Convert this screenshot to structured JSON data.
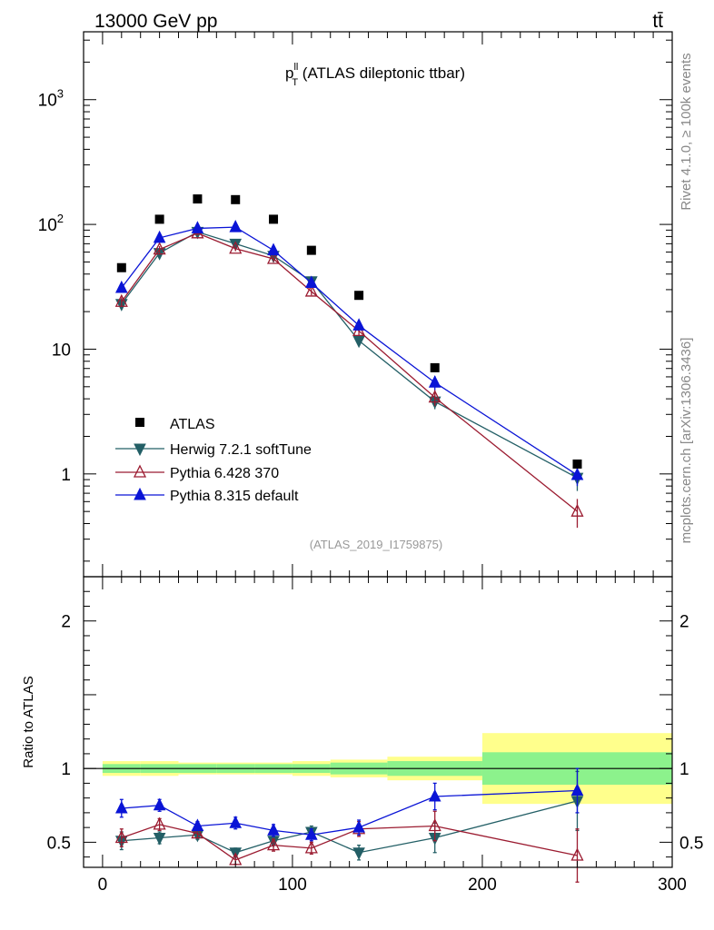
{
  "header": {
    "left": "13000 GeV pp",
    "right": "tt̄"
  },
  "side_labels": {
    "rivet": "Rivet 4.1.0, ≥ 100k events",
    "mcplots": "mcplots.cern.ch [arXiv:1306.3436]"
  },
  "chart_data": {
    "type": "scatter",
    "title_main": "p",
    "title_sup": "ll",
    "title_sub": "T",
    "title_rest": " (ATLAS dileptonic ttbar)",
    "analysis": "(ATLAS_2019_I1759875)",
    "xlim": [
      -10,
      300
    ],
    "ylim_main": [
      0.15,
      3500
    ],
    "ylim_ratio": [
      0.33,
      2.3
    ],
    "log_y_main": true,
    "xticks": [
      0,
      100,
      200,
      300
    ],
    "xtick_labels": [
      "0",
      "100",
      "200",
      "300"
    ],
    "main_yticks": [
      1,
      10,
      100,
      1000
    ],
    "main_ytick_labels": [
      "1",
      "10",
      "10",
      "10"
    ],
    "main_ytick_exps": [
      "",
      "",
      "2",
      "3"
    ],
    "ratio_yticks": [
      0.5,
      1,
      2
    ],
    "ratio_ytick_labels": [
      "0.5",
      "1",
      "2"
    ],
    "ratio_ylabel": "Ratio to ATLAS",
    "bin_edges": [
      0,
      20,
      40,
      60,
      80,
      100,
      120,
      150,
      200,
      300
    ],
    "x": [
      10,
      30,
      50,
      70,
      90,
      110,
      135,
      175,
      250
    ],
    "data": {
      "name": "ATLAS",
      "values": [
        45,
        110,
        160,
        158,
        110,
        62,
        27,
        7.1,
        1.2
      ],
      "band_inner": [
        0.03,
        0.03,
        0.03,
        0.03,
        0.03,
        0.03,
        0.04,
        0.05,
        0.11
      ],
      "band_outer": [
        0.05,
        0.05,
        0.04,
        0.04,
        0.04,
        0.05,
        0.06,
        0.08,
        0.24
      ]
    },
    "series": [
      {
        "name": "Herwig 7.2.1 softTune",
        "color": "#235f66",
        "marker": "triangle-down-filled",
        "values": [
          23,
          59,
          87,
          70,
          56,
          35,
          11.7,
          3.8,
          0.93
        ],
        "errors": [
          2,
          4,
          4,
          3,
          3,
          2,
          1,
          0.5,
          0.2
        ],
        "ratio": [
          0.51,
          0.53,
          0.55,
          0.43,
          0.51,
          0.57,
          0.43,
          0.53,
          0.78
        ],
        "ratio_err": [
          0.06,
          0.04,
          0.03,
          0.03,
          0.03,
          0.04,
          0.05,
          0.1,
          0.2
        ]
      },
      {
        "name": "Pythia 6.428 370",
        "color": "#9b1b30",
        "marker": "triangle-up-open",
        "values": [
          24,
          63,
          85,
          64,
          53,
          29,
          14,
          4.1,
          0.5
        ],
        "errors": [
          2,
          4,
          4,
          3,
          3,
          2,
          1.2,
          0.6,
          0.13
        ],
        "ratio": [
          0.53,
          0.62,
          0.56,
          0.38,
          0.48,
          0.46,
          0.59,
          0.61,
          0.41
        ],
        "ratio_err": [
          0.06,
          0.04,
          0.03,
          0.03,
          0.04,
          0.04,
          0.05,
          0.1,
          0.18
        ]
      },
      {
        "name": "Pythia 8.315 default",
        "color": "#0a14d6",
        "marker": "triangle-up-filled",
        "values": [
          31,
          78,
          93,
          95,
          62,
          34,
          15.5,
          5.4,
          0.98
        ],
        "errors": [
          2,
          4,
          4,
          3,
          3,
          2,
          1.3,
          0.7,
          0.18
        ],
        "ratio": [
          0.73,
          0.75,
          0.61,
          0.63,
          0.58,
          0.55,
          0.6,
          0.81,
          0.85
        ],
        "ratio_err": [
          0.06,
          0.04,
          0.03,
          0.04,
          0.04,
          0.04,
          0.05,
          0.09,
          0.15
        ]
      }
    ],
    "legend": [
      "ATLAS",
      "Herwig 7.2.1 softTune",
      "Pythia 6.428 370",
      "Pythia 8.315 default"
    ]
  }
}
